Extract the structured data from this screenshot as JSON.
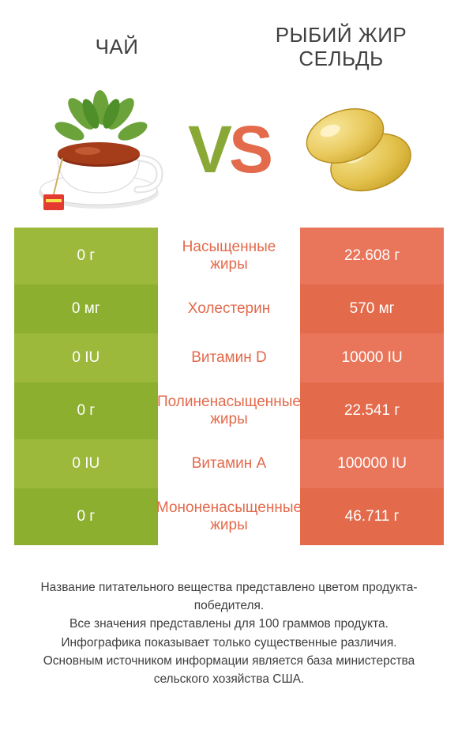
{
  "titles": {
    "left": "ЧАЙ",
    "right": "РЫБИЙ ЖИР СЕЛЬДЬ"
  },
  "vs": {
    "v": "V",
    "s": "S"
  },
  "colors": {
    "left_a": "#9cb93c",
    "left_b": "#8daf30",
    "right_a": "#e9755a",
    "right_b": "#e36a4b",
    "mid_text": "#e36a4b",
    "vs_left": "#8aa836",
    "vs_right": "#e36a4b"
  },
  "rows": [
    {
      "left": "0 г",
      "mid": "Насыщенные жиры",
      "right": "22.608 г",
      "tall": true
    },
    {
      "left": "0 мг",
      "mid": "Холестерин",
      "right": "570 мг",
      "tall": false
    },
    {
      "left": "0 IU",
      "mid": "Витамин D",
      "right": "10000 IU",
      "tall": false
    },
    {
      "left": "0 г",
      "mid": "Полиненасыщенные жиры",
      "right": "22.541 г",
      "tall": true
    },
    {
      "left": "0 IU",
      "mid": "Витамин A",
      "right": "100000 IU",
      "tall": false
    },
    {
      "left": "0 г",
      "mid": "Мононенасыщенные жиры",
      "right": "46.711 г",
      "tall": true
    }
  ],
  "footer": [
    "Название питательного вещества представлено цветом продукта-победителя.",
    "Все значения представлены для 100 граммов продукта.",
    "Инфографика показывает только существенные различия.",
    "Основным источником информации является база министерства сельского хозяйства США."
  ]
}
